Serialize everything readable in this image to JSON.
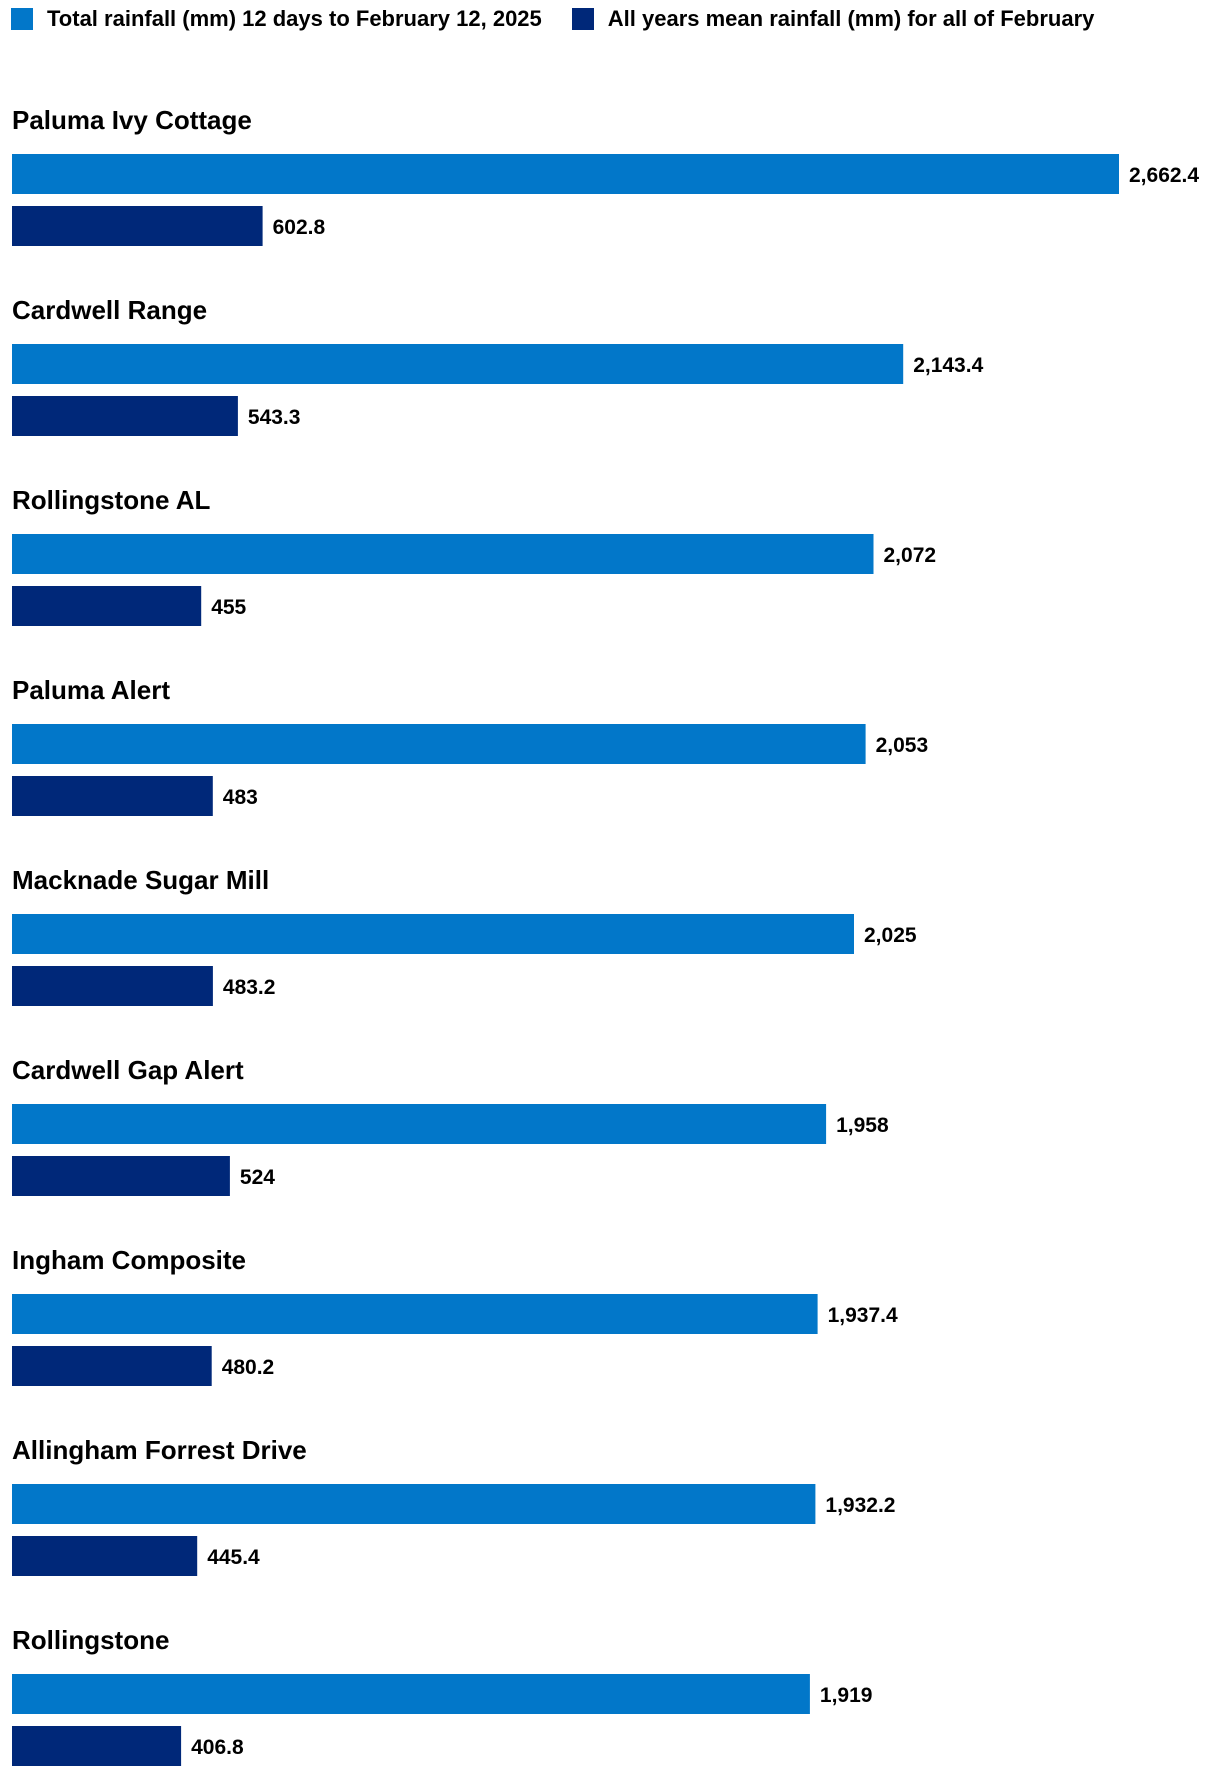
{
  "chart_data": {
    "type": "bar",
    "orientation": "horizontal",
    "title": "",
    "xlabel": "",
    "ylabel": "",
    "grid": false,
    "legend_position": "top-left",
    "categories": [
      "Paluma Ivy Cottage",
      "Cardwell Range",
      "Rollingstone AL",
      "Paluma Alert",
      "Macknade Sugar Mill",
      "Cardwell Gap Alert",
      "Ingham Composite",
      "Allingham Forrest Drive",
      "Rollingstone"
    ],
    "series": [
      {
        "name": "Total rainfall (mm) 12 days to February 12, 2025",
        "color": "#0277C9",
        "values": [
          2662.4,
          2143.4,
          2072,
          2053,
          2025,
          1958,
          1937.4,
          1932.2,
          1919
        ],
        "labels": [
          "2,662.4",
          "2,143.4",
          "2,072",
          "2,053",
          "2,025",
          "1,958",
          "1,937.4",
          "1,932.2",
          "1,919"
        ]
      },
      {
        "name": "All years mean rainfall (mm) for all of February",
        "color": "#002879",
        "values": [
          602.8,
          543.3,
          455,
          483,
          483.2,
          524,
          480.2,
          445.4,
          406.8
        ],
        "labels": [
          "602.8",
          "543.3",
          "455",
          "483",
          "483.2",
          "524",
          "480.2",
          "445.4",
          "406.8"
        ]
      }
    ],
    "xlim": [
      0,
      2662.4
    ]
  }
}
